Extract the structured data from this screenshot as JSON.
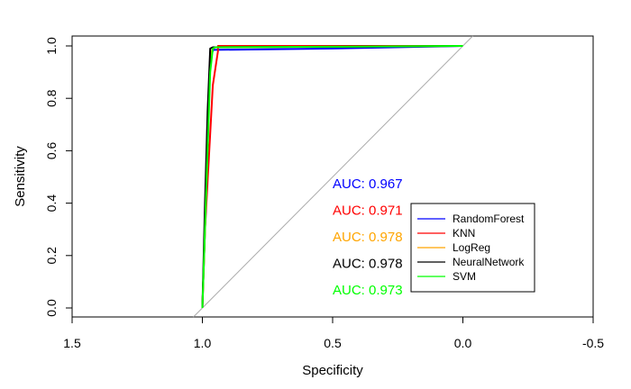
{
  "chart_data": {
    "type": "line",
    "title": "",
    "xlabel": "Specificity",
    "ylabel": "Sensitivity",
    "xlim": [
      1.5,
      -0.5
    ],
    "ylim": [
      0,
      1
    ],
    "x_ticks": [
      "1.5",
      "1.0",
      "0.5",
      "0.0",
      "-0.5"
    ],
    "y_ticks": [
      "0.0",
      "0.2",
      "0.4",
      "0.6",
      "0.8",
      "1.0"
    ],
    "grid": false,
    "legend_position": "bottom-right",
    "diagonal_reference": {
      "x": [
        1.0,
        0.0
      ],
      "y": [
        0.0,
        1.0
      ],
      "color": "#aaaaaa"
    },
    "series": [
      {
        "name": "RandomForest",
        "color": "#0000ff",
        "x": [
          1.0,
          0.99,
          0.97,
          0.96,
          0.96,
          0.5,
          0.0
        ],
        "y": [
          0.0,
          0.3,
          0.97,
          0.98,
          0.985,
          0.99,
          1.0
        ]
      },
      {
        "name": "KNN",
        "color": "#ff0000",
        "x": [
          1.0,
          0.99,
          0.96,
          0.94,
          0.94,
          0.0
        ],
        "y": [
          0.0,
          0.3,
          0.85,
          0.98,
          1.0,
          1.0
        ]
      },
      {
        "name": "LogReg",
        "color": "#ffa500",
        "x": [
          1.0,
          0.99,
          0.97,
          0.96,
          0.95,
          0.0
        ],
        "y": [
          0.0,
          0.3,
          0.96,
          0.99,
          0.995,
          1.0
        ]
      },
      {
        "name": "NeuralNetwork",
        "color": "#000000",
        "x": [
          1.0,
          0.99,
          0.98,
          0.97,
          0.96,
          0.0
        ],
        "y": [
          0.0,
          0.4,
          0.75,
          0.99,
          0.995,
          1.0
        ]
      },
      {
        "name": "SVM",
        "color": "#00ff00",
        "x": [
          1.0,
          0.99,
          0.97,
          0.96,
          0.95,
          0.5,
          0.0
        ],
        "y": [
          0.0,
          0.3,
          0.9,
          0.99,
          0.995,
          0.997,
          1.0
        ]
      }
    ],
    "auc_labels": [
      {
        "text": "AUC: 0.967",
        "color": "#0000ff"
      },
      {
        "text": "AUC: 0.971",
        "color": "#ff0000"
      },
      {
        "text": "AUC: 0.978",
        "color": "#ffa500"
      },
      {
        "text": "AUC: 0.978",
        "color": "#000000"
      },
      {
        "text": "AUC: 0.973",
        "color": "#00ff00"
      }
    ]
  }
}
